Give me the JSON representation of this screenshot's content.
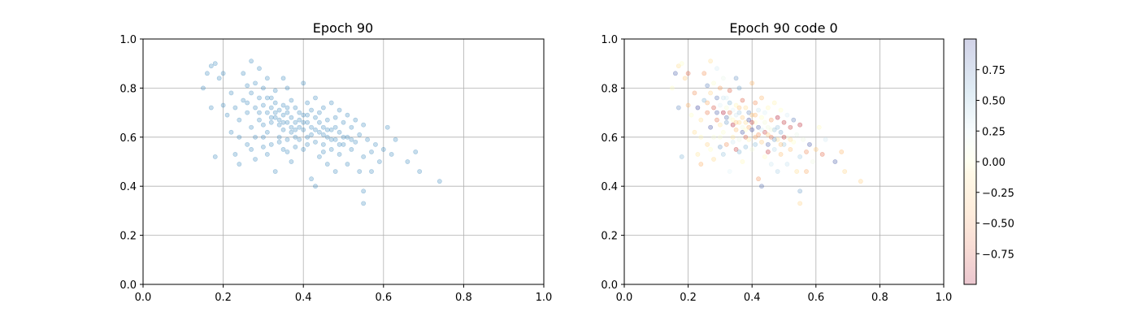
{
  "chart_data": [
    {
      "type": "scatter",
      "title": "Epoch 90",
      "xlabel": "",
      "ylabel": "",
      "xlim": [
        0,
        1
      ],
      "ylim": [
        0,
        1
      ],
      "xticks": [
        "0.0",
        "0.2",
        "0.4",
        "0.6",
        "0.8",
        "1.0"
      ],
      "yticks": [
        "0.0",
        "0.2",
        "0.4",
        "0.6",
        "0.8",
        "1.0"
      ],
      "grid": true,
      "marker_color": "#1f77b4",
      "point_count_approx": 500,
      "points_sampled": [
        [
          0.15,
          0.8
        ],
        [
          0.16,
          0.86
        ],
        [
          0.17,
          0.89
        ],
        [
          0.18,
          0.9
        ],
        [
          0.19,
          0.84
        ],
        [
          0.2,
          0.86
        ],
        [
          0.17,
          0.72
        ],
        [
          0.18,
          0.52
        ],
        [
          0.2,
          0.73
        ],
        [
          0.21,
          0.69
        ],
        [
          0.22,
          0.78
        ],
        [
          0.22,
          0.62
        ],
        [
          0.23,
          0.72
        ],
        [
          0.23,
          0.53
        ],
        [
          0.24,
          0.49
        ],
        [
          0.24,
          0.6
        ],
        [
          0.25,
          0.86
        ],
        [
          0.25,
          0.75
        ],
        [
          0.26,
          0.81
        ],
        [
          0.26,
          0.7
        ],
        [
          0.26,
          0.57
        ],
        [
          0.27,
          0.91
        ],
        [
          0.27,
          0.78
        ],
        [
          0.27,
          0.64
        ],
        [
          0.28,
          0.82
        ],
        [
          0.28,
          0.72
        ],
        [
          0.28,
          0.6
        ],
        [
          0.28,
          0.51
        ],
        [
          0.29,
          0.88
        ],
        [
          0.29,
          0.76
        ],
        [
          0.29,
          0.67
        ],
        [
          0.3,
          0.8
        ],
        [
          0.3,
          0.73
        ],
        [
          0.3,
          0.65
        ],
        [
          0.3,
          0.56
        ],
        [
          0.31,
          0.84
        ],
        [
          0.31,
          0.7
        ],
        [
          0.31,
          0.62
        ],
        [
          0.32,
          0.76
        ],
        [
          0.32,
          0.72
        ],
        [
          0.32,
          0.66
        ],
        [
          0.32,
          0.57
        ],
        [
          0.33,
          0.79
        ],
        [
          0.33,
          0.74
        ],
        [
          0.33,
          0.68
        ],
        [
          0.33,
          0.46
        ],
        [
          0.34,
          0.71
        ],
        [
          0.34,
          0.65
        ],
        [
          0.34,
          0.6
        ],
        [
          0.35,
          0.84
        ],
        [
          0.35,
          0.73
        ],
        [
          0.35,
          0.69
        ],
        [
          0.35,
          0.63
        ],
        [
          0.35,
          0.55
        ],
        [
          0.36,
          0.8
        ],
        [
          0.36,
          0.7
        ],
        [
          0.36,
          0.66
        ],
        [
          0.36,
          0.59
        ],
        [
          0.37,
          0.75
        ],
        [
          0.37,
          0.68
        ],
        [
          0.37,
          0.62
        ],
        [
          0.37,
          0.5
        ],
        [
          0.38,
          0.72
        ],
        [
          0.38,
          0.66
        ],
        [
          0.38,
          0.6
        ],
        [
          0.38,
          0.56
        ],
        [
          0.39,
          0.7
        ],
        [
          0.39,
          0.64
        ],
        [
          0.39,
          0.59
        ],
        [
          0.4,
          0.82
        ],
        [
          0.4,
          0.69
        ],
        [
          0.4,
          0.63
        ],
        [
          0.4,
          0.55
        ],
        [
          0.41,
          0.74
        ],
        [
          0.41,
          0.66
        ],
        [
          0.41,
          0.6
        ],
        [
          0.42,
          0.71
        ],
        [
          0.42,
          0.64
        ],
        [
          0.42,
          0.43
        ],
        [
          0.43,
          0.76
        ],
        [
          0.43,
          0.68
        ],
        [
          0.43,
          0.58
        ],
        [
          0.43,
          0.4
        ],
        [
          0.44,
          0.7
        ],
        [
          0.44,
          0.62
        ],
        [
          0.44,
          0.52
        ],
        [
          0.45,
          0.72
        ],
        [
          0.45,
          0.64
        ],
        [
          0.45,
          0.57
        ],
        [
          0.46,
          0.67
        ],
        [
          0.46,
          0.6
        ],
        [
          0.46,
          0.49
        ],
        [
          0.47,
          0.74
        ],
        [
          0.47,
          0.63
        ],
        [
          0.47,
          0.55
        ],
        [
          0.48,
          0.68
        ],
        [
          0.48,
          0.59
        ],
        [
          0.48,
          0.46
        ],
        [
          0.49,
          0.71
        ],
        [
          0.49,
          0.62
        ],
        [
          0.49,
          0.53
        ],
        [
          0.5,
          0.66
        ],
        [
          0.5,
          0.57
        ],
        [
          0.51,
          0.69
        ],
        [
          0.51,
          0.6
        ],
        [
          0.51,
          0.49
        ],
        [
          0.52,
          0.64
        ],
        [
          0.52,
          0.55
        ],
        [
          0.53,
          0.67
        ],
        [
          0.53,
          0.58
        ],
        [
          0.54,
          0.61
        ],
        [
          0.54,
          0.46
        ],
        [
          0.55,
          0.65
        ],
        [
          0.55,
          0.52
        ],
        [
          0.55,
          0.38
        ],
        [
          0.55,
          0.33
        ],
        [
          0.56,
          0.59
        ],
        [
          0.57,
          0.54
        ],
        [
          0.57,
          0.46
        ],
        [
          0.58,
          0.57
        ],
        [
          0.59,
          0.5
        ],
        [
          0.6,
          0.55
        ],
        [
          0.61,
          0.64
        ],
        [
          0.62,
          0.53
        ],
        [
          0.63,
          0.59
        ],
        [
          0.66,
          0.5
        ],
        [
          0.68,
          0.54
        ],
        [
          0.69,
          0.46
        ],
        [
          0.74,
          0.42
        ],
        [
          0.26,
          0.74
        ],
        [
          0.29,
          0.7
        ],
        [
          0.31,
          0.76
        ],
        [
          0.33,
          0.7
        ],
        [
          0.34,
          0.67
        ],
        [
          0.36,
          0.72
        ],
        [
          0.37,
          0.64
        ],
        [
          0.39,
          0.67
        ],
        [
          0.41,
          0.69
        ],
        [
          0.42,
          0.61
        ],
        [
          0.44,
          0.66
        ],
        [
          0.45,
          0.61
        ],
        [
          0.47,
          0.59
        ],
        [
          0.48,
          0.64
        ],
        [
          0.5,
          0.6
        ],
        [
          0.52,
          0.59
        ],
        [
          0.46,
          0.63
        ],
        [
          0.38,
          0.63
        ],
        [
          0.32,
          0.68
        ],
        [
          0.35,
          0.66
        ],
        [
          0.4,
          0.66
        ],
        [
          0.43,
          0.63
        ],
        [
          0.3,
          0.6
        ],
        [
          0.34,
          0.58
        ],
        [
          0.41,
          0.57
        ],
        [
          0.45,
          0.54
        ],
        [
          0.49,
          0.57
        ],
        [
          0.36,
          0.54
        ],
        [
          0.27,
          0.55
        ],
        [
          0.31,
          0.53
        ],
        [
          0.24,
          0.67
        ]
      ]
    },
    {
      "type": "scatter",
      "title": "Epoch 90 code 0",
      "xlabel": "",
      "ylabel": "",
      "xlim": [
        0,
        1
      ],
      "ylim": [
        0,
        1
      ],
      "xticks": [
        "0.0",
        "0.2",
        "0.4",
        "0.6",
        "0.8",
        "1.0"
      ],
      "yticks": [
        "0.0",
        "0.2",
        "0.4",
        "0.6",
        "0.8",
        "1.0"
      ],
      "grid": true,
      "note_points": "same point positions as left panel, colored by code value",
      "colorbar": {
        "colormap": "RdYlBu",
        "range": [
          -1,
          1
        ],
        "ticks": [
          "0.75",
          "0.50",
          "0.25",
          "0.00",
          "−0.25",
          "−0.50",
          "−0.75"
        ],
        "tick_values": [
          0.75,
          0.5,
          0.25,
          0.0,
          -0.25,
          -0.5,
          -0.75
        ]
      }
    }
  ]
}
